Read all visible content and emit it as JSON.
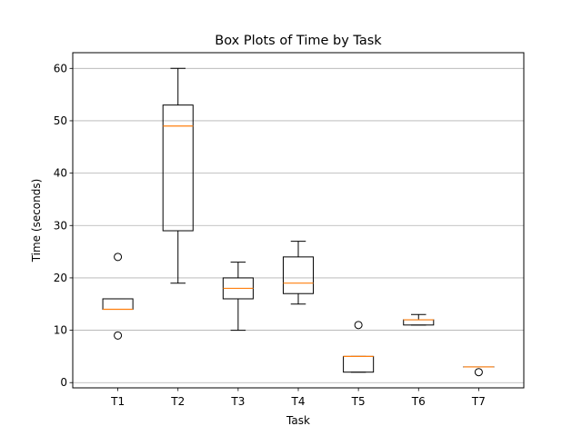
{
  "chart_data": {
    "type": "box",
    "title": "Box Plots of Time by Task",
    "xlabel": "Task",
    "ylabel": "Time (seconds)",
    "ylim": [
      -1,
      63
    ],
    "yticks": [
      0,
      10,
      20,
      30,
      40,
      50,
      60
    ],
    "grid": "horizontal",
    "categories": [
      "T1",
      "T2",
      "T3",
      "T4",
      "T5",
      "T6",
      "T7"
    ],
    "boxes": [
      {
        "whisker_low": 14,
        "q1": 14,
        "median": 14,
        "q3": 16,
        "whisker_high": 16,
        "outliers": [
          24,
          9
        ]
      },
      {
        "whisker_low": 19,
        "q1": 29,
        "median": 49,
        "q3": 53,
        "whisker_high": 60,
        "outliers": []
      },
      {
        "whisker_low": 10,
        "q1": 16,
        "median": 18,
        "q3": 20,
        "whisker_high": 23,
        "outliers": []
      },
      {
        "whisker_low": 15,
        "q1": 17,
        "median": 19,
        "q3": 24,
        "whisker_high": 27,
        "outliers": []
      },
      {
        "whisker_low": 2,
        "q1": 2,
        "median": 5,
        "q3": 5,
        "whisker_high": 5,
        "outliers": [
          11
        ]
      },
      {
        "whisker_low": 11,
        "q1": 11,
        "median": 12,
        "q3": 12,
        "whisker_high": 13,
        "outliers": []
      },
      {
        "whisker_low": 3,
        "q1": 3,
        "median": 3,
        "q3": 3,
        "whisker_high": 3,
        "outliers": [
          2
        ]
      }
    ],
    "colors": {
      "box": "#000000",
      "median": "#ff7f0e",
      "grid": "#b0b0b0"
    }
  }
}
